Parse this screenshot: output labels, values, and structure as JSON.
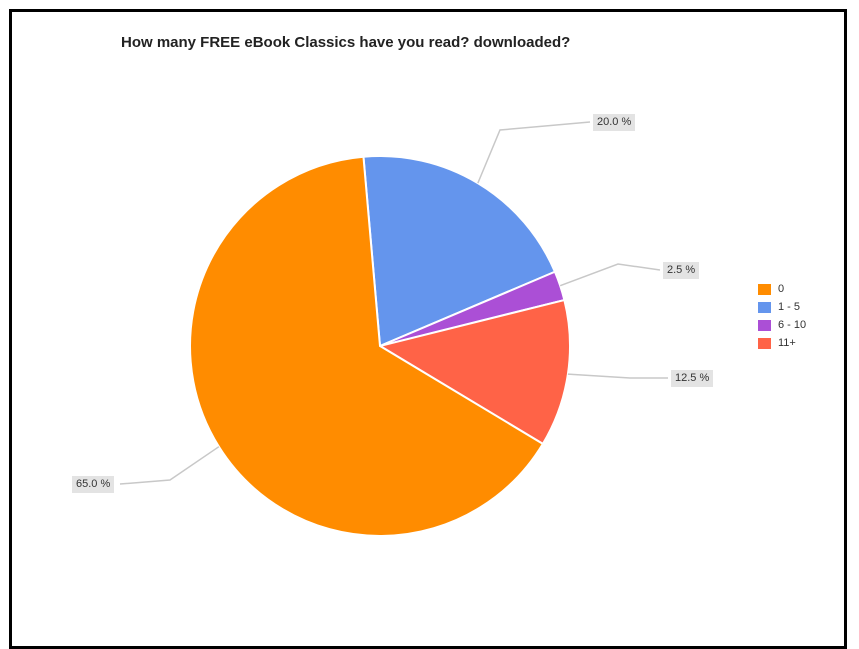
{
  "chart_data": {
    "type": "pie",
    "title": "How many FREE eBook Classics have you read?  downloaded?",
    "categories": [
      "0",
      "1 - 5",
      "6 - 10",
      "11+"
    ],
    "values": [
      65.0,
      20.0,
      2.5,
      12.5
    ],
    "labels": [
      "65.0 %",
      "20.0 %",
      "2.5 %",
      "12.5 %"
    ],
    "colors": [
      "#ff8c00",
      "#6495ed",
      "#ab4fd6",
      "#ff6347"
    ],
    "legend_position": "right"
  }
}
